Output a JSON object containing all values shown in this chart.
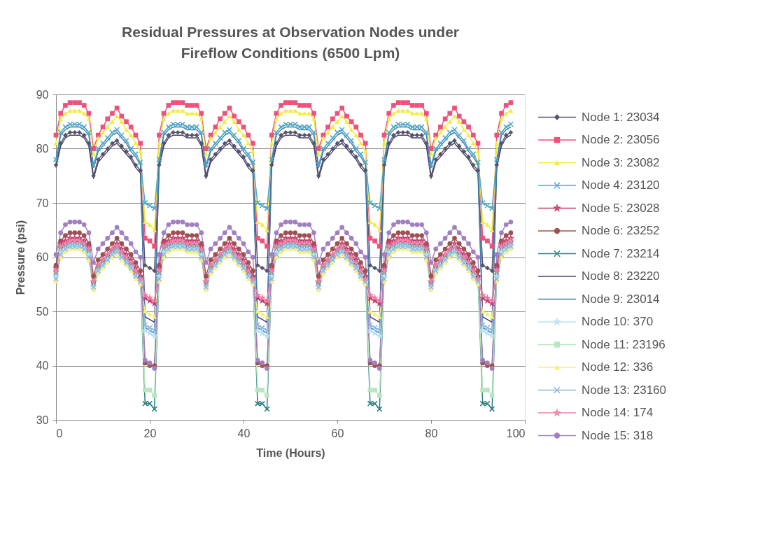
{
  "chart_data": {
    "type": "line",
    "title": "Residual Pressures at Observation Nodes under Fireflow Conditions (6500 Lpm)",
    "xlabel": "Time (Hours)",
    "ylabel": "Pressure (psi)",
    "xlim": [
      0,
      100
    ],
    "xticks": [
      0,
      20,
      40,
      60,
      80,
      100
    ],
    "ylim": [
      30,
      90
    ],
    "yticks": [
      30,
      40,
      50,
      60,
      70,
      80,
      90
    ],
    "grid": "y",
    "legend": "right",
    "x": [
      0,
      1,
      2,
      3,
      4,
      5,
      6,
      7,
      8,
      9,
      10,
      11,
      12,
      13,
      14,
      15,
      16,
      17,
      18,
      19,
      20,
      21,
      22,
      23,
      24,
      25,
      26,
      27,
      28,
      29,
      30,
      31,
      32,
      33,
      34,
      35,
      36,
      37,
      38,
      39,
      40,
      41,
      42,
      43,
      44,
      45,
      46,
      47,
      48,
      49,
      50,
      51,
      52,
      53,
      54,
      55,
      56,
      57,
      58,
      59,
      60,
      61,
      62,
      63,
      64,
      65,
      66,
      67,
      68,
      69,
      70,
      71,
      72,
      73,
      74,
      75,
      76,
      77,
      78,
      79,
      80,
      81,
      82,
      83,
      84,
      85,
      86,
      87,
      88,
      89,
      90,
      91,
      92,
      93,
      94,
      95,
      96,
      97
    ],
    "series": [
      {
        "name": "Node 1: 23034",
        "color": "#55556a",
        "marker": "diamond",
        "values": [
          77,
          81,
          82.5,
          83,
          83,
          83,
          82.5,
          81,
          75,
          78,
          79,
          80,
          81,
          81.5,
          80.5,
          79.5,
          78.5,
          77,
          76,
          58.5,
          58,
          57.5,
          77,
          81,
          82.5,
          83,
          83,
          83,
          82.5,
          82.5,
          82.5,
          81,
          75,
          78,
          79,
          80,
          81,
          81.5,
          80.5,
          79.5,
          78.5,
          77,
          76,
          58.5,
          58,
          57.5,
          77,
          81,
          82.5,
          83,
          83,
          83,
          82.5,
          82.5,
          82.5,
          81,
          75,
          78,
          79,
          80,
          81,
          81.5,
          80.5,
          79.5,
          78.5,
          77,
          76,
          58.5,
          58,
          57.5,
          77,
          81,
          82.5,
          83,
          83,
          83,
          82.5,
          82.5,
          82.5,
          81,
          75,
          78,
          79,
          80,
          81,
          81.5,
          80.5,
          79.5,
          78.5,
          77,
          76,
          58.5,
          58,
          57.5,
          77,
          81,
          82.5,
          83
        ]
      },
      {
        "name": "Node 2: 23056",
        "color": "#f0507a",
        "marker": "square",
        "values": [
          82.5,
          86.5,
          88,
          88.5,
          88.5,
          88.5,
          88,
          86.5,
          80,
          82.5,
          84,
          85.5,
          86.5,
          87.5,
          86,
          85,
          84,
          82.5,
          81,
          63.5,
          63,
          62,
          82.5,
          86.5,
          88,
          88.5,
          88.5,
          88.5,
          88,
          88,
          88,
          86.5,
          80,
          82.5,
          84,
          85.5,
          86.5,
          87.5,
          86,
          85,
          84,
          82.5,
          81,
          63.5,
          63,
          62,
          82.5,
          86.5,
          88,
          88.5,
          88.5,
          88.5,
          88,
          88,
          88,
          86.5,
          80,
          82.5,
          84,
          85.5,
          86.5,
          87.5,
          86,
          85,
          84,
          82.5,
          81,
          63.5,
          63,
          62,
          82.5,
          86.5,
          88,
          88.5,
          88.5,
          88.5,
          88,
          88,
          88,
          86.5,
          80,
          82.5,
          84,
          85.5,
          86.5,
          87.5,
          86,
          85,
          84,
          82.5,
          81,
          63.5,
          63,
          62,
          82.5,
          86.5,
          88,
          88.5
        ]
      },
      {
        "name": "Node 3: 23082",
        "color": "#f2ec3a",
        "marker": "triangle",
        "values": [
          81,
          85.5,
          86.5,
          87,
          87,
          87,
          86.5,
          85.5,
          79,
          82,
          83,
          84,
          85,
          86,
          85,
          83.5,
          82.5,
          81,
          79.5,
          66.5,
          66,
          65,
          81,
          85.5,
          86.5,
          87,
          87,
          87,
          86.5,
          86.5,
          86.5,
          85.5,
          79,
          82,
          83,
          84,
          85,
          86,
          85,
          83.5,
          82.5,
          81,
          79.5,
          66.5,
          66,
          65,
          81,
          85.5,
          86.5,
          87,
          87,
          87,
          86.5,
          86.5,
          86.5,
          85.5,
          79,
          82,
          83,
          84,
          85,
          86,
          85,
          83.5,
          82.5,
          81,
          79.5,
          66.5,
          66,
          65,
          81,
          85.5,
          86.5,
          87,
          87,
          87,
          86.5,
          86.5,
          86.5,
          85.5,
          79,
          82,
          83,
          84,
          85,
          86,
          85,
          83.5,
          82.5,
          81,
          79.5,
          66.5,
          66,
          65,
          81,
          85.5,
          86.5,
          87
        ]
      },
      {
        "name": "Node 4: 23120",
        "color": "#50a8c8",
        "marker": "cross",
        "values": [
          78,
          83,
          84,
          84.5,
          84.5,
          84.5,
          84,
          83,
          77,
          80,
          81,
          82,
          83,
          83.5,
          82.5,
          81.5,
          80,
          79,
          77.5,
          70,
          69.5,
          69,
          78,
          83,
          84,
          84.5,
          84.5,
          84.5,
          84,
          84,
          84,
          83,
          77,
          80,
          81,
          82,
          83,
          83.5,
          82.5,
          81.5,
          80,
          79,
          77.5,
          70,
          69.5,
          69,
          78,
          83,
          84,
          84.5,
          84.5,
          84.5,
          84,
          84,
          84,
          83,
          77,
          80,
          81,
          82,
          83,
          83.5,
          82.5,
          81.5,
          80,
          79,
          77.5,
          70,
          69.5,
          69,
          78,
          83,
          84,
          84.5,
          84.5,
          84.5,
          84,
          84,
          84,
          83,
          77,
          80,
          81,
          82,
          83,
          83.5,
          82.5,
          81.5,
          80,
          79,
          77.5,
          70,
          69.5,
          69,
          78,
          83,
          84,
          84.5
        ]
      },
      {
        "name": "Node 5: 23028",
        "color": "#c04070",
        "marker": "star",
        "values": [
          58,
          62.5,
          63,
          63.5,
          63.5,
          63.5,
          63,
          62,
          55.5,
          58.5,
          59.5,
          60.5,
          61.5,
          62.5,
          61.5,
          60.5,
          59.5,
          58,
          56.5,
          52.5,
          52,
          51.5,
          58,
          62.5,
          63,
          63.5,
          63.5,
          63.5,
          63,
          63,
          63,
          62,
          55.5,
          58.5,
          59.5,
          60.5,
          61.5,
          62.5,
          61.5,
          60.5,
          59.5,
          58,
          56.5,
          52.5,
          52,
          51.5,
          58,
          62.5,
          63,
          63.5,
          63.5,
          63.5,
          63,
          63,
          63,
          62,
          55.5,
          58.5,
          59.5,
          60.5,
          61.5,
          62.5,
          61.5,
          60.5,
          59.5,
          58,
          56.5,
          52.5,
          52,
          51.5,
          58,
          62.5,
          63,
          63.5,
          63.5,
          63.5,
          63,
          63,
          63,
          62,
          55.5,
          58.5,
          59.5,
          60.5,
          61.5,
          62.5,
          61.5,
          60.5,
          59.5,
          58,
          56.5,
          52.5,
          52,
          51.5,
          58,
          62.5,
          63,
          63.5
        ]
      },
      {
        "name": "Node 6: 23252",
        "color": "#a05050",
        "marker": "circle",
        "values": [
          58.5,
          63,
          64,
          64.5,
          64.5,
          64.5,
          64,
          62.5,
          56.5,
          59.5,
          60.5,
          61.5,
          62.5,
          63.5,
          62.5,
          61.5,
          60.5,
          59,
          57.5,
          40.5,
          40,
          40,
          58.5,
          63,
          64,
          64.5,
          64.5,
          64.5,
          64,
          64,
          64,
          62.5,
          56.5,
          59.5,
          60.5,
          61.5,
          62.5,
          63.5,
          62.5,
          61.5,
          60.5,
          59,
          57.5,
          40.5,
          40,
          40,
          58.5,
          63,
          64,
          64.5,
          64.5,
          64.5,
          64,
          64,
          64,
          62.5,
          56.5,
          59.5,
          60.5,
          61.5,
          62.5,
          63.5,
          62.5,
          61.5,
          60.5,
          59,
          57.5,
          40.5,
          40,
          40,
          58.5,
          63,
          64,
          64.5,
          64.5,
          64.5,
          64,
          64,
          64,
          62.5,
          56.5,
          59.5,
          60.5,
          61.5,
          62.5,
          63.5,
          62.5,
          61.5,
          60.5,
          59,
          57.5,
          40.5,
          40,
          40,
          58.5,
          63,
          64,
          64.5
        ]
      },
      {
        "name": "Node 7: 23214",
        "color": "#308080",
        "marker": "cross",
        "values": [
          57,
          61.5,
          62,
          62.5,
          62.5,
          62.5,
          62,
          61,
          55,
          58,
          59,
          60,
          61,
          61.5,
          60.5,
          59.5,
          58.5,
          57,
          56,
          33,
          33,
          32,
          57,
          61.5,
          62,
          62.5,
          62.5,
          62.5,
          62,
          62,
          62,
          61,
          55,
          58,
          59,
          60,
          61,
          61.5,
          60.5,
          59.5,
          58.5,
          57,
          56,
          33,
          33,
          32,
          57,
          61.5,
          62,
          62.5,
          62.5,
          62.5,
          62,
          62,
          62,
          61,
          55,
          58,
          59,
          60,
          61,
          61.5,
          60.5,
          59.5,
          58.5,
          57,
          56,
          33,
          33,
          32,
          57,
          61.5,
          62,
          62.5,
          62.5,
          62.5,
          62,
          62,
          62,
          61,
          55,
          58,
          59,
          60,
          61,
          61.5,
          60.5,
          59.5,
          58.5,
          57,
          56,
          33,
          33,
          32,
          57,
          61.5,
          62,
          62.5
        ]
      },
      {
        "name": "Node 8: 23220",
        "color": "#504070",
        "marker": "none",
        "values": [
          76.5,
          80.5,
          82,
          82.5,
          82.5,
          82.5,
          82,
          80.5,
          74.5,
          77.5,
          78.5,
          79.5,
          80.5,
          81,
          80,
          79,
          78,
          76.5,
          75.5,
          49,
          48.5,
          48,
          76.5,
          80.5,
          82,
          82.5,
          82.5,
          82.5,
          82,
          82,
          82,
          80.5,
          74.5,
          77.5,
          78.5,
          79.5,
          80.5,
          81,
          80,
          79,
          78,
          76.5,
          75.5,
          49,
          48.5,
          48,
          76.5,
          80.5,
          82,
          82.5,
          82.5,
          82.5,
          82,
          82,
          82,
          80.5,
          74.5,
          77.5,
          78.5,
          79.5,
          80.5,
          81,
          80,
          79,
          78,
          76.5,
          75.5,
          49,
          48.5,
          48,
          76.5,
          80.5,
          82,
          82.5,
          82.5,
          82.5,
          82,
          82,
          82,
          80.5,
          74.5,
          77.5,
          78.5,
          79.5,
          80.5,
          81,
          80,
          79,
          78,
          76.5,
          75.5,
          49,
          48.5,
          48,
          76.5,
          80.5,
          82,
          82.5
        ]
      },
      {
        "name": "Node 9: 23014",
        "color": "#4080b0",
        "marker": "none",
        "values": [
          77.5,
          82.5,
          83.5,
          84,
          84,
          84,
          83.5,
          82.5,
          76.5,
          79.5,
          80.5,
          81.5,
          82.5,
          83,
          82,
          81,
          79.5,
          78.5,
          77,
          47,
          46.5,
          46,
          77.5,
          82.5,
          83.5,
          84,
          84,
          84,
          83.5,
          83.5,
          83.5,
          82.5,
          76.5,
          79.5,
          80.5,
          81.5,
          82.5,
          83,
          82,
          81,
          79.5,
          78.5,
          77,
          47,
          46.5,
          46,
          77.5,
          82.5,
          83.5,
          84,
          84,
          84,
          83.5,
          83.5,
          83.5,
          82.5,
          76.5,
          79.5,
          80.5,
          81.5,
          82.5,
          83,
          82,
          81,
          79.5,
          78.5,
          77,
          47,
          46.5,
          46,
          77.5,
          82.5,
          83.5,
          84,
          84,
          84,
          83.5,
          83.5,
          83.5,
          82.5,
          76.5,
          79.5,
          80.5,
          81.5,
          82.5,
          83,
          82,
          81,
          79.5,
          78.5,
          77,
          47,
          46.5,
          46,
          77.5,
          82.5,
          83.5,
          84
        ]
      },
      {
        "name": "Node 10: 370",
        "color": "#b8e2f4",
        "marker": "star",
        "values": [
          56.5,
          61,
          61.5,
          62,
          62,
          62,
          61.5,
          60.5,
          54.5,
          57.5,
          58.5,
          59.5,
          60.5,
          61,
          60,
          59,
          58,
          56.5,
          55.5,
          46.5,
          46,
          45.5,
          56.5,
          61,
          61.5,
          62,
          62,
          62,
          61.5,
          61.5,
          61.5,
          60.5,
          54.5,
          57.5,
          58.5,
          59.5,
          60.5,
          61,
          60,
          59,
          58,
          56.5,
          55.5,
          46.5,
          46,
          45.5,
          56.5,
          61,
          61.5,
          62,
          62,
          62,
          61.5,
          61.5,
          61.5,
          60.5,
          54.5,
          57.5,
          58.5,
          59.5,
          60.5,
          61,
          60,
          59,
          58,
          56.5,
          55.5,
          46.5,
          46,
          45.5,
          56.5,
          61,
          61.5,
          62,
          62,
          62,
          61.5,
          61.5,
          61.5,
          60.5,
          54.5,
          57.5,
          58.5,
          59.5,
          60.5,
          61,
          60,
          59,
          58,
          56.5,
          55.5,
          46.5,
          46,
          45.5,
          56.5,
          61,
          61.5,
          62
        ]
      },
      {
        "name": "Node 11: 23196",
        "color": "#b8e6c0",
        "marker": "square",
        "values": [
          57,
          61.5,
          62,
          62.5,
          62.5,
          62.5,
          62,
          61,
          55,
          58,
          59,
          60,
          61,
          61.5,
          60.5,
          59.5,
          58.5,
          57,
          56,
          35.5,
          35.5,
          34.5,
          57,
          61.5,
          62,
          62.5,
          62.5,
          62.5,
          62,
          62,
          62,
          61,
          55,
          58,
          59,
          60,
          61,
          61.5,
          60.5,
          59.5,
          58.5,
          57,
          56,
          35.5,
          35.5,
          34.5,
          57,
          61.5,
          62,
          62.5,
          62.5,
          62.5,
          62,
          62,
          62,
          61,
          55,
          58,
          59,
          60,
          61,
          61.5,
          60.5,
          59.5,
          58.5,
          57,
          56,
          35.5,
          35.5,
          34.5,
          57,
          61.5,
          62,
          62.5,
          62.5,
          62.5,
          62,
          62,
          62,
          61,
          55,
          58,
          59,
          60,
          61,
          61.5,
          60.5,
          59.5,
          58.5,
          57,
          56,
          35.5,
          35.5,
          34.5,
          57,
          61.5,
          62,
          62.5
        ]
      },
      {
        "name": "Node 12: 336",
        "color": "#f6f070",
        "marker": "triangle",
        "values": [
          55.5,
          60,
          61,
          61.5,
          61.5,
          61.5,
          61,
          59.5,
          54,
          57,
          58,
          59,
          60,
          60.5,
          59.5,
          58.5,
          57.5,
          56,
          55,
          50,
          49.5,
          49,
          55.5,
          60,
          61,
          61.5,
          61.5,
          61.5,
          61,
          61,
          61,
          59.5,
          54,
          57,
          58,
          59,
          60,
          60.5,
          59.5,
          58.5,
          57.5,
          56,
          55,
          50,
          49.5,
          49,
          55.5,
          60,
          61,
          61.5,
          61.5,
          61.5,
          61,
          61,
          61,
          59.5,
          54,
          57,
          58,
          59,
          60,
          60.5,
          59.5,
          58.5,
          57.5,
          56,
          55,
          50,
          49.5,
          49,
          55.5,
          60,
          61,
          61.5,
          61.5,
          61.5,
          61,
          61,
          61,
          59.5,
          54,
          57,
          58,
          59,
          60,
          60.5,
          59.5,
          58.5,
          57.5,
          56,
          55,
          50,
          49.5,
          49,
          55.5,
          60,
          61,
          61.5
        ]
      },
      {
        "name": "Node 13: 23160",
        "color": "#90b8e0",
        "marker": "cross",
        "values": [
          56,
          60.5,
          61.5,
          62,
          62,
          62,
          61.5,
          60,
          54.5,
          57.5,
          58.5,
          59.5,
          60.5,
          61,
          60,
          59,
          58,
          56.5,
          55.5,
          47.5,
          47,
          46.5,
          56,
          60.5,
          61.5,
          62,
          62,
          62,
          61.5,
          61.5,
          61.5,
          60,
          54.5,
          57.5,
          58.5,
          59.5,
          60.5,
          61,
          60,
          59,
          58,
          56.5,
          55.5,
          47.5,
          47,
          46.5,
          56,
          60.5,
          61.5,
          62,
          62,
          62,
          61.5,
          61.5,
          61.5,
          60,
          54.5,
          57.5,
          58.5,
          59.5,
          60.5,
          61,
          60,
          59,
          58,
          56.5,
          55.5,
          47.5,
          47,
          46.5,
          56,
          60.5,
          61.5,
          62,
          62,
          62,
          61.5,
          61.5,
          61.5,
          60,
          54.5,
          57.5,
          58.5,
          59.5,
          60.5,
          61,
          60,
          59,
          58,
          56.5,
          55.5,
          47.5,
          47,
          46.5,
          56,
          60.5,
          61.5,
          62
        ]
      },
      {
        "name": "Node 14: 174",
        "color": "#f080a8",
        "marker": "star",
        "values": [
          57.5,
          62,
          62.5,
          63,
          63,
          63,
          62.5,
          61.5,
          55.5,
          58.5,
          59.5,
          60.5,
          61.5,
          62,
          61,
          60,
          59,
          57.5,
          56,
          53,
          52.5,
          52,
          57.5,
          62,
          62.5,
          63,
          63,
          63,
          62.5,
          62.5,
          62.5,
          61.5,
          55.5,
          58.5,
          59.5,
          60.5,
          61.5,
          62,
          61,
          60,
          59,
          57.5,
          56,
          53,
          52.5,
          52,
          57.5,
          62,
          62.5,
          63,
          63,
          63,
          62.5,
          62.5,
          62.5,
          61.5,
          55.5,
          58.5,
          59.5,
          60.5,
          61.5,
          62,
          61,
          60,
          59,
          57.5,
          56,
          53,
          52.5,
          52,
          57.5,
          62,
          62.5,
          63,
          63,
          63,
          62.5,
          62.5,
          62.5,
          61.5,
          55.5,
          58.5,
          59.5,
          60.5,
          61.5,
          62,
          61,
          60,
          59,
          57.5,
          56,
          53,
          52.5,
          52,
          57.5,
          62,
          62.5,
          63
        ]
      },
      {
        "name": "Node 15: 318",
        "color": "#a080c0",
        "marker": "circle",
        "values": [
          60.5,
          64.5,
          66,
          66.5,
          66.5,
          66.5,
          66,
          64.5,
          59,
          61.5,
          62.5,
          63.5,
          64.5,
          65.5,
          64.5,
          63.5,
          62.5,
          61,
          60,
          41,
          40.5,
          39.5,
          60.5,
          64.5,
          66,
          66.5,
          66.5,
          66.5,
          66,
          66,
          66,
          64.5,
          59,
          61.5,
          62.5,
          63.5,
          64.5,
          65.5,
          64.5,
          63.5,
          62.5,
          61,
          60,
          41,
          40.5,
          39.5,
          60.5,
          64.5,
          66,
          66.5,
          66.5,
          66.5,
          66,
          66,
          66,
          64.5,
          59,
          61.5,
          62.5,
          63.5,
          64.5,
          65.5,
          64.5,
          63.5,
          62.5,
          61,
          60,
          41,
          40.5,
          39.5,
          60.5,
          64.5,
          66,
          66.5,
          66.5,
          66.5,
          66,
          66,
          66,
          64.5,
          59,
          61.5,
          62.5,
          63.5,
          64.5,
          65.5,
          64.5,
          63.5,
          62.5,
          61,
          60,
          41,
          40.5,
          39.5,
          60.5,
          64.5,
          66,
          66.5
        ]
      }
    ]
  }
}
